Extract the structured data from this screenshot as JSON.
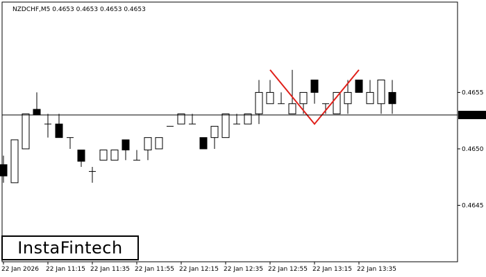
{
  "chart_data": {
    "type": "candlestick",
    "title": "NZDCHF,M5  0.4653 0.4653 0.4653 0.4653",
    "ylim": [
      0.464,
      0.4663
    ],
    "y_ticks": [
      "0.4655",
      "0.4650",
      "0.4645"
    ],
    "y_tick_values": [
      0.4655,
      0.465,
      0.4645
    ],
    "current_price": "0.4653",
    "current_price_value": 0.4653,
    "x_labels": [
      "22 Jan 2026",
      "22 Jan 11:15",
      "22 Jan 11:35",
      "22 Jan 11:55",
      "22 Jan 12:15",
      "22 Jan 12:35",
      "22 Jan 12:55",
      "22 Jan 13:15",
      "22 Jan 13:35"
    ],
    "x_label_index": [
      0,
      4,
      8,
      12,
      16,
      20,
      24,
      28,
      32
    ],
    "candles": [
      {
        "o": 0.46486,
        "h": 0.46494,
        "l": 0.4647,
        "c": 0.46476
      },
      {
        "o": 0.4647,
        "h": 0.46508,
        "l": 0.4647,
        "c": 0.46508
      },
      {
        "o": 0.465,
        "h": 0.46531,
        "l": 0.465,
        "c": 0.46531
      },
      {
        "o": 0.46535,
        "h": 0.4655,
        "l": 0.4653,
        "c": 0.4653
      },
      {
        "o": 0.46522,
        "h": 0.46531,
        "l": 0.4651,
        "c": 0.46522
      },
      {
        "o": 0.46522,
        "h": 0.46531,
        "l": 0.4651,
        "c": 0.4651
      },
      {
        "o": 0.4651,
        "h": 0.4651,
        "l": 0.465,
        "c": 0.4651
      },
      {
        "o": 0.46499,
        "h": 0.46499,
        "l": 0.46484,
        "c": 0.46489
      },
      {
        "o": 0.4648,
        "h": 0.46484,
        "l": 0.4647,
        "c": 0.4648
      },
      {
        "o": 0.4649,
        "h": 0.46499,
        "l": 0.4649,
        "c": 0.46499
      },
      {
        "o": 0.4649,
        "h": 0.46499,
        "l": 0.4649,
        "c": 0.46499
      },
      {
        "o": 0.46508,
        "h": 0.46508,
        "l": 0.4649,
        "c": 0.46499
      },
      {
        "o": 0.4649,
        "h": 0.46499,
        "l": 0.4649,
        "c": 0.4649
      },
      {
        "o": 0.46499,
        "h": 0.4651,
        "l": 0.4649,
        "c": 0.4651
      },
      {
        "o": 0.465,
        "h": 0.4651,
        "l": 0.465,
        "c": 0.4651
      },
      {
        "o": 0.4652,
        "h": 0.4652,
        "l": 0.4652,
        "c": 0.4652
      },
      {
        "o": 0.46522,
        "h": 0.46531,
        "l": 0.46522,
        "c": 0.46531
      },
      {
        "o": 0.46522,
        "h": 0.46531,
        "l": 0.46522,
        "c": 0.46522
      },
      {
        "o": 0.4651,
        "h": 0.4651,
        "l": 0.465,
        "c": 0.465
      },
      {
        "o": 0.4651,
        "h": 0.4652,
        "l": 0.465,
        "c": 0.4652
      },
      {
        "o": 0.4651,
        "h": 0.46531,
        "l": 0.4651,
        "c": 0.46531
      },
      {
        "o": 0.46522,
        "h": 0.46531,
        "l": 0.46522,
        "c": 0.46522
      },
      {
        "o": 0.46522,
        "h": 0.46531,
        "l": 0.46522,
        "c": 0.46531
      },
      {
        "o": 0.46531,
        "h": 0.46561,
        "l": 0.46522,
        "c": 0.4655
      },
      {
        "o": 0.4654,
        "h": 0.46561,
        "l": 0.4654,
        "c": 0.4655
      },
      {
        "o": 0.4654,
        "h": 0.4655,
        "l": 0.4654,
        "c": 0.4654
      },
      {
        "o": 0.46531,
        "h": 0.4657,
        "l": 0.46531,
        "c": 0.4654
      },
      {
        "o": 0.4654,
        "h": 0.4655,
        "l": 0.46531,
        "c": 0.4655
      },
      {
        "o": 0.46561,
        "h": 0.46561,
        "l": 0.4654,
        "c": 0.4655
      },
      {
        "o": 0.4654,
        "h": 0.4654,
        "l": 0.46531,
        "c": 0.4654
      },
      {
        "o": 0.46531,
        "h": 0.4655,
        "l": 0.46531,
        "c": 0.4655
      },
      {
        "o": 0.4654,
        "h": 0.46561,
        "l": 0.46531,
        "c": 0.4655
      },
      {
        "o": 0.46561,
        "h": 0.46561,
        "l": 0.4655,
        "c": 0.4655
      },
      {
        "o": 0.4654,
        "h": 0.46561,
        "l": 0.4654,
        "c": 0.4655
      },
      {
        "o": 0.4654,
        "h": 0.46561,
        "l": 0.46531,
        "c": 0.46561
      },
      {
        "o": 0.4655,
        "h": 0.46561,
        "l": 0.46531,
        "c": 0.4654
      }
    ],
    "pattern": {
      "color": "#e0201a",
      "points": [
        {
          "i": 24,
          "p": 0.4657
        },
        {
          "i": 28,
          "p": 0.46522
        },
        {
          "i": 32,
          "p": 0.4657
        }
      ]
    },
    "colors": {
      "bull_fill": "#ffffff",
      "bear_fill": "#000000",
      "outline": "#000000",
      "price_box": "#000000",
      "price_text": "#ffffff"
    }
  },
  "logo": {
    "text": "InstaFintech"
  }
}
